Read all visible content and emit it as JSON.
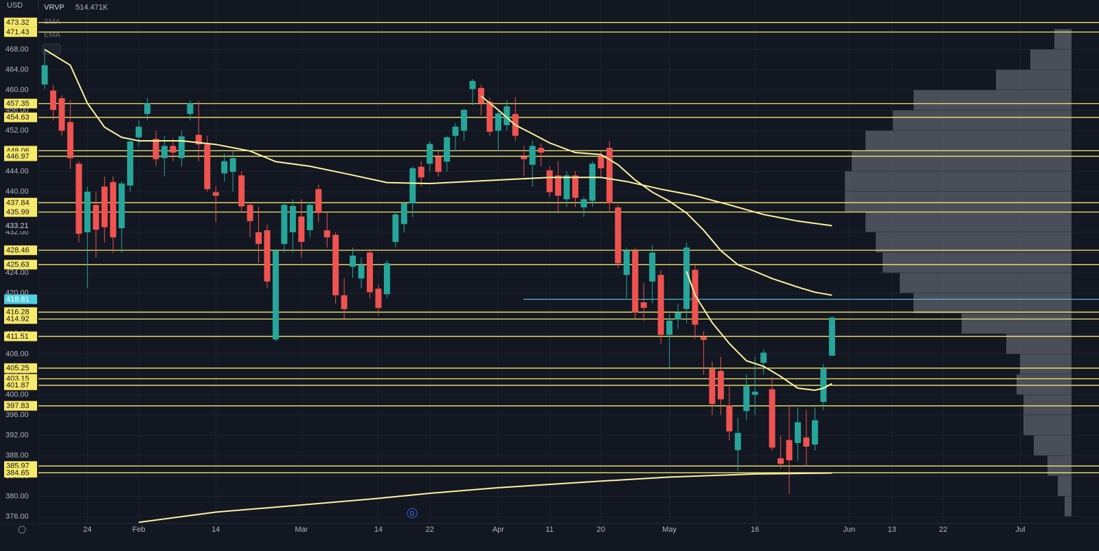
{
  "chart_data": {
    "type": "candlestick",
    "currency": "USD",
    "indicators": [
      {
        "name": "VRVP",
        "value": "514.471K"
      },
      {
        "name": "SMA"
      },
      {
        "name": "EMA"
      }
    ],
    "event_marker": "D",
    "categories": [
      null,
      null,
      null,
      null,
      null,
      "24",
      null,
      null,
      null,
      null,
      null,
      "Feb",
      null,
      null,
      null,
      null,
      null,
      null,
      null,
      null,
      "14",
      null,
      null,
      null,
      null,
      null,
      null,
      null,
      null,
      null,
      "Mar",
      null,
      null,
      null,
      null,
      null,
      null,
      null,
      null,
      "14",
      null,
      null,
      null,
      null,
      null,
      "22",
      null,
      null,
      null,
      null,
      null,
      null,
      null,
      "Apr",
      null,
      null,
      null,
      null,
      null,
      "11",
      null,
      null,
      null,
      null,
      null,
      "20",
      null,
      null,
      null,
      null,
      null,
      null,
      null,
      "May",
      null,
      null,
      null,
      null,
      null,
      null,
      null,
      null,
      null,
      "16",
      null,
      null,
      null,
      null,
      null,
      null,
      null,
      null,
      null,
      null,
      "Jun",
      null,
      null,
      null,
      null,
      "13",
      null,
      null,
      null,
      null,
      null,
      "22",
      null,
      null,
      null,
      null,
      null,
      null,
      null,
      null,
      "Jul"
    ],
    "open": [
      461.1,
      459.9,
      458.4,
      453.7,
      445.5,
      432.0,
      437.4,
      441.0,
      441.9,
      432.8,
      441.2,
      450.7,
      455.3,
      450.4,
      446.6,
      449.0,
      446.6,
      455.3,
      451.2,
      449.3,
      439.9,
      443.6,
      443.9,
      443.2,
      437.4,
      432.0,
      432.4,
      410.9,
      429.7,
      432.0,
      435.1,
      432.4,
      440.5,
      432.4,
      431.5,
      419.6,
      425.2,
      422.9,
      428.0,
      420.9,
      419.8,
      430.1,
      433.6,
      437.7,
      444.9,
      445.5,
      446.9,
      445.9,
      451.0,
      452.0,
      460.2,
      460.4,
      457.7,
      452.0,
      453.1,
      455.3,
      446.9,
      445.3,
      448.6,
      444.2,
      443.2,
      438.5,
      443.2,
      436.9,
      438.2,
      446.9,
      448.6,
      436.9,
      423.6,
      428.4,
      418.2,
      422.3,
      423.6,
      411.8,
      414.8,
      416.9,
      424.6,
      411.4,
      405.1,
      404.7,
      397.9,
      389.1,
      396.8,
      400.0,
      406.3,
      401.1,
      387.5,
      391.1,
      390.5,
      391.6,
      390.2,
      398.6,
      407.7,
      null,
      null,
      null,
      null,
      null,
      null,
      null,
      null,
      null,
      null,
      null,
      null,
      null,
      null,
      null,
      null,
      null,
      null,
      null,
      null,
      null,
      null
    ],
    "high": [
      468.0,
      461.0,
      459.0,
      458.0,
      446.0,
      441.0,
      440.0,
      443.0,
      443.0,
      442.0,
      450.0,
      454.0,
      458.5,
      452.0,
      451.0,
      450.5,
      452.0,
      458.0,
      457.8,
      451.0,
      441.0,
      447.5,
      448.0,
      444.0,
      438.0,
      437.0,
      433.5,
      428.7,
      438.0,
      438.5,
      438.5,
      438.0,
      441.4,
      436.0,
      432.0,
      423.0,
      429.0,
      427.0,
      428.7,
      421.7,
      426.5,
      436.0,
      438.0,
      445.0,
      446.0,
      450.0,
      448.0,
      451.0,
      453.5,
      456.3,
      462.2,
      461.0,
      458.5,
      456.0,
      458.0,
      458.6,
      449.0,
      450.0,
      449.5,
      445.0,
      446.0,
      444.0,
      444.0,
      439.0,
      446.0,
      448.0,
      450.0,
      437.4,
      429.0,
      429.0,
      422.0,
      429.5,
      424.5,
      416.0,
      418.0,
      430.0,
      425.5,
      412.5,
      406.5,
      407.5,
      402.0,
      395.5,
      404.0,
      407.5,
      409.0,
      403.5,
      392.0,
      398.0,
      397.5,
      397.0,
      397.5,
      406.0,
      415.5,
      null,
      null,
      null,
      null,
      null,
      null,
      null,
      null,
      null,
      null,
      null,
      null,
      null,
      null,
      null,
      null,
      null,
      null,
      null,
      null,
      null,
      null
    ],
    "low": [
      460.2,
      454.0,
      451.0,
      444.5,
      430.0,
      421.0,
      427.0,
      430.0,
      428.0,
      428.0,
      440.0,
      449.0,
      454.0,
      445.0,
      443.0,
      446.0,
      445.0,
      454.0,
      446.0,
      440.0,
      434.0,
      442.0,
      440.0,
      436.0,
      431.0,
      426.0,
      421.0,
      410.5,
      428.0,
      428.0,
      427.0,
      431.0,
      434.0,
      429.0,
      418.0,
      415.0,
      423.0,
      421.0,
      419.0,
      415.7,
      419.0,
      429.0,
      432.0,
      435.0,
      441.0,
      444.0,
      443.0,
      444.0,
      448.0,
      450.0,
      457.0,
      455.0,
      451.0,
      448.0,
      452.0,
      450.0,
      443.0,
      441.0,
      445.0,
      439.0,
      436.0,
      437.0,
      437.0,
      435.0,
      437.0,
      443.0,
      436.0,
      425.0,
      419.0,
      415.0,
      414.5,
      418.0,
      410.0,
      405.0,
      413.0,
      414.0,
      411.0,
      404.0,
      396.0,
      396.0,
      391.0,
      385.0,
      395.0,
      396.0,
      404.0,
      389.0,
      385.5,
      380.5,
      387.0,
      386.0,
      389.0,
      397.0,
      407.7,
      null,
      null,
      null,
      null,
      null,
      null,
      null,
      null,
      null,
      null,
      null,
      null,
      null,
      null,
      null,
      null,
      null,
      null,
      null,
      null,
      null,
      null
    ],
    "close": [
      464.9,
      456.1,
      452.0,
      446.6,
      431.7,
      440.0,
      432.5,
      433.0,
      431.0,
      441.6,
      449.9,
      452.8,
      457.4,
      446.4,
      449.0,
      447.7,
      450.9,
      457.4,
      449.3,
      440.5,
      439.2,
      446.0,
      446.6,
      437.1,
      434.2,
      429.7,
      422.3,
      428.4,
      437.4,
      437.2,
      430.1,
      437.4,
      435.8,
      431.0,
      419.6,
      416.9,
      427.4,
      425.6,
      420.2,
      417.1,
      425.9,
      435.5,
      437.7,
      444.6,
      442.8,
      449.4,
      443.9,
      450.7,
      452.8,
      456.1,
      461.8,
      457.4,
      451.8,
      455.4,
      456.8,
      451.0,
      446.4,
      449.0,
      447.7,
      439.9,
      439.2,
      443.2,
      438.8,
      438.5,
      445.5,
      444.6,
      437.8,
      425.9,
      428.4,
      416.2,
      417.1,
      428.0,
      411.8,
      414.6,
      416.2,
      429.0,
      413.8,
      410.8,
      398.2,
      399.1,
      392.8,
      392.5,
      401.7,
      400.6,
      408.3,
      389.6,
      386.4,
      387.1,
      394.6,
      389.8,
      395.0,
      405.1,
      415.2,
      null,
      null,
      null,
      null,
      null,
      null,
      null,
      null,
      null,
      null,
      null,
      null,
      null,
      null,
      null,
      null,
      null,
      null,
      null,
      null,
      null,
      null
    ],
    "up_color": "#26a69a",
    "down_color": "#ef5350",
    "moving_averages": [
      {
        "color": "#fff59d",
        "x": [
          0,
          3,
          5,
          7,
          9,
          11,
          16,
          20,
          24,
          27,
          31,
          35,
          40,
          45,
          53,
          59,
          65,
          68,
          72,
          76,
          80,
          84,
          88,
          92
        ],
        "values": [
          468.0,
          464.9,
          457.4,
          452.7,
          450.7,
          450.0,
          450.0,
          449.3,
          448.0,
          445.9,
          445.0,
          443.6,
          441.8,
          441.6,
          442.3,
          442.8,
          442.8,
          442.0,
          440.5,
          439.2,
          437.4,
          435.5,
          434.2,
          433.3
        ]
      },
      {
        "color": "#fff59d",
        "x": [
          51,
          53,
          55,
          57,
          59,
          62,
          65,
          67,
          69,
          71,
          73,
          75,
          77,
          79,
          81,
          83,
          85,
          88,
          90,
          92
        ],
        "values": [
          458.8,
          456.1,
          453.1,
          451.4,
          449.6,
          447.7,
          447.3,
          445.3,
          442.3,
          439.9,
          438.1,
          435.8,
          432.4,
          428.4,
          425.6,
          424.3,
          422.9,
          421.2,
          420.2,
          419.6
        ]
      },
      {
        "color": "#fff59d",
        "x": [
          75,
          76,
          78,
          80,
          82,
          84,
          86,
          88,
          90,
          91,
          92
        ],
        "values": [
          424.3,
          419.6,
          414.2,
          410.1,
          406.7,
          405.6,
          403.6,
          401.3,
          400.9,
          401.3,
          402.2
        ]
      },
      {
        "color": "#fff59d",
        "x": [
          11,
          20,
          30,
          39,
          45,
          53,
          65,
          73,
          83,
          92
        ],
        "values": [
          374.9,
          376.9,
          378.3,
          379.6,
          380.6,
          381.7,
          383.0,
          383.8,
          384.4,
          384.6
        ]
      }
    ],
    "ma_price_label": 433.21,
    "levels": [
      473.32,
      471.43,
      457.35,
      454.63,
      448.06,
      446.97,
      437.84,
      435.99,
      428.46,
      425.63,
      416.28,
      414.92,
      411.51,
      405.25,
      403.15,
      401.87,
      397.83,
      385.97,
      384.65
    ],
    "level_color": "#f7e96a",
    "last_price": 418.81,
    "last_price_color": "#4dd0e1",
    "volume_profile": {
      "bins": [
        376,
        380,
        384,
        388,
        392,
        396,
        400,
        404,
        408,
        412,
        416,
        420,
        424,
        428,
        432,
        436,
        440,
        444,
        448,
        452,
        456,
        460,
        464,
        468,
        472
      ],
      "values": [
        10,
        20,
        35,
        55,
        70,
        70,
        80,
        75,
        95,
        160,
        230,
        250,
        275,
        285,
        300,
        330,
        330,
        320,
        300,
        260,
        230,
        110,
        60,
        25
      ]
    },
    "ylim": [
      374.65,
      477.74
    ],
    "yticks": [
      {
        "value": 376,
        "label": "376.00"
      },
      {
        "value": 380,
        "label": "380.00"
      },
      {
        "value": 384,
        "label": "384.00"
      },
      {
        "value": 388,
        "label": "388.00"
      },
      {
        "value": 392,
        "label": "392.00"
      },
      {
        "value": 396,
        "label": "396.00"
      },
      {
        "value": 400,
        "label": "400.00"
      },
      {
        "value": 404,
        "label": "404.00"
      },
      {
        "value": 408,
        "label": "408.00"
      },
      {
        "value": 412,
        "label": "412.00"
      },
      {
        "value": 416,
        "label": "416.00"
      },
      {
        "value": 420,
        "label": "420.00"
      },
      {
        "value": 424,
        "label": "424.00"
      },
      {
        "value": 428,
        "label": "428.00"
      },
      {
        "value": 432,
        "label": "432.00"
      },
      {
        "value": 436,
        "label": "436.00"
      },
      {
        "value": 440,
        "label": "440.00"
      },
      {
        "value": 444,
        "label": "444.00"
      },
      {
        "value": 448,
        "label": "448.00"
      },
      {
        "value": 452,
        "label": "452.00"
      },
      {
        "value": 456,
        "label": "456.00"
      },
      {
        "value": 460,
        "label": "460.00"
      },
      {
        "value": 464,
        "label": "464.00"
      },
      {
        "value": 468,
        "label": "468.00"
      }
    ],
    "grid": true
  }
}
